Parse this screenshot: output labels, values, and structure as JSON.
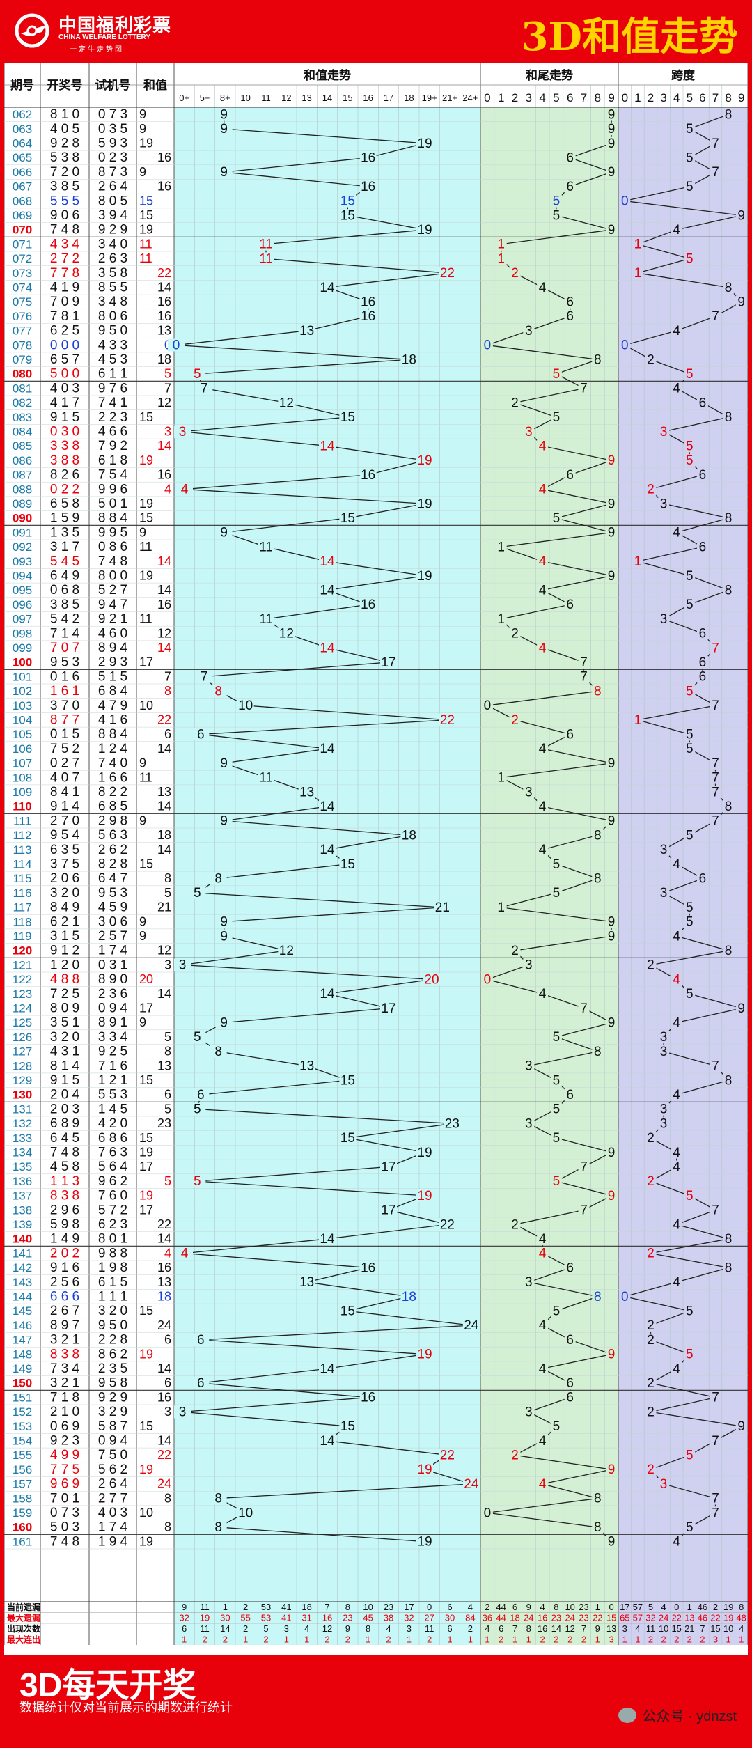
{
  "header": {
    "logo_cn": "中国福利彩票",
    "logo_en": "CHINA WELFARE LOTTERY",
    "logo_slogan": "一定牛走势图",
    "title": "3D和值走势"
  },
  "footer": {
    "title": "3D每天开奖",
    "note": "数据统计仅对当前展示的期数进行统计",
    "watermark": "公众号 · ydnzst"
  },
  "colors": {
    "red": "#e8000b",
    "sum_bg": "#c8f7f7",
    "tail_bg": "#d4f0d4",
    "span_bg": "#d0d0f0",
    "highlight_red": "#e8000b",
    "highlight_blue": "#1a3fd6",
    "title_yellow": "#ffd200"
  },
  "chart_data": {
    "type": "line",
    "column_headers": {
      "issue": "期号",
      "draw": "开奖号",
      "test": "试机号",
      "sum": "和值",
      "sum_trend": "和值走势",
      "tail_trend": "和尾走势",
      "span": "跨度"
    },
    "sum_bins": [
      "0+",
      "5+",
      "8+",
      "10",
      "11",
      "12",
      "13",
      "14",
      "15",
      "16",
      "17",
      "18",
      "19+",
      "21+",
      "24+"
    ],
    "tail_bins": [
      "0",
      "1",
      "2",
      "3",
      "4",
      "5",
      "6",
      "7",
      "8",
      "9"
    ],
    "span_bins": [
      "0",
      "1",
      "2",
      "3",
      "4",
      "5",
      "6",
      "7",
      "8",
      "9"
    ],
    "rows": [
      [
        "062",
        "810",
        "073",
        9,
        9,
        9,
        8
      ],
      [
        "063",
        "405",
        "035",
        9,
        9,
        9,
        5
      ],
      [
        "064",
        "928",
        "593",
        19,
        19,
        9,
        7
      ],
      [
        "065",
        "538",
        "023",
        16,
        16,
        6,
        5
      ],
      [
        "066",
        "720",
        "873",
        9,
        9,
        9,
        7
      ],
      [
        "067",
        "385",
        "264",
        16,
        16,
        6,
        5
      ],
      [
        "068",
        "555",
        "805",
        15,
        15,
        5,
        0
      ],
      [
        "069",
        "906",
        "394",
        15,
        15,
        5,
        9
      ],
      [
        "070",
        "748",
        "929",
        19,
        19,
        9,
        4
      ],
      [
        "071",
        "434",
        "340",
        11,
        11,
        1,
        1
      ],
      [
        "072",
        "272",
        "263",
        11,
        11,
        1,
        5
      ],
      [
        "073",
        "778",
        "358",
        22,
        22,
        2,
        1
      ],
      [
        "074",
        "419",
        "855",
        14,
        14,
        4,
        8
      ],
      [
        "075",
        "709",
        "348",
        16,
        16,
        6,
        9
      ],
      [
        "076",
        "781",
        "806",
        16,
        16,
        6,
        7
      ],
      [
        "077",
        "625",
        "950",
        13,
        13,
        3,
        4
      ],
      [
        "078",
        "000",
        "433",
        0,
        0,
        0,
        0
      ],
      [
        "079",
        "657",
        "453",
        18,
        18,
        8,
        2
      ],
      [
        "080",
        "500",
        "611",
        5,
        5,
        5,
        5
      ],
      [
        "081",
        "403",
        "976",
        7,
        7,
        7,
        4
      ],
      [
        "082",
        "417",
        "741",
        12,
        12,
        2,
        6
      ],
      [
        "083",
        "915",
        "223",
        15,
        15,
        5,
        8
      ],
      [
        "084",
        "030",
        "466",
        3,
        3,
        3,
        3
      ],
      [
        "085",
        "338",
        "792",
        14,
        14,
        4,
        5
      ],
      [
        "086",
        "388",
        "618",
        19,
        19,
        9,
        5
      ],
      [
        "087",
        "826",
        "754",
        16,
        16,
        6,
        6
      ],
      [
        "088",
        "022",
        "996",
        4,
        4,
        4,
        2
      ],
      [
        "089",
        "658",
        "501",
        19,
        19,
        9,
        3
      ],
      [
        "090",
        "159",
        "884",
        15,
        15,
        5,
        8
      ],
      [
        "091",
        "135",
        "995",
        9,
        9,
        9,
        4
      ],
      [
        "092",
        "317",
        "086",
        11,
        11,
        1,
        6
      ],
      [
        "093",
        "545",
        "748",
        14,
        14,
        4,
        1
      ],
      [
        "094",
        "649",
        "800",
        19,
        19,
        9,
        5
      ],
      [
        "095",
        "068",
        "527",
        14,
        14,
        4,
        8
      ],
      [
        "096",
        "385",
        "947",
        16,
        16,
        6,
        5
      ],
      [
        "097",
        "542",
        "921",
        11,
        11,
        1,
        3
      ],
      [
        "098",
        "714",
        "460",
        12,
        12,
        2,
        6
      ],
      [
        "099",
        "707",
        "894",
        14,
        14,
        4,
        7
      ],
      [
        "100",
        "953",
        "293",
        17,
        17,
        7,
        6
      ],
      [
        "101",
        "016",
        "515",
        7,
        7,
        7,
        6
      ],
      [
        "102",
        "161",
        "684",
        8,
        8,
        8,
        5
      ],
      [
        "103",
        "370",
        "479",
        10,
        10,
        0,
        7
      ],
      [
        "104",
        "877",
        "416",
        22,
        22,
        2,
        1
      ],
      [
        "105",
        "015",
        "884",
        6,
        6,
        6,
        5
      ],
      [
        "106",
        "752",
        "124",
        14,
        14,
        4,
        5
      ],
      [
        "107",
        "027",
        "740",
        9,
        9,
        9,
        7
      ],
      [
        "108",
        "407",
        "166",
        11,
        11,
        1,
        7
      ],
      [
        "109",
        "841",
        "822",
        13,
        13,
        3,
        7
      ],
      [
        "110",
        "914",
        "685",
        14,
        14,
        4,
        8
      ],
      [
        "111",
        "270",
        "298",
        9,
        9,
        9,
        7
      ],
      [
        "112",
        "954",
        "563",
        18,
        18,
        8,
        5
      ],
      [
        "113",
        "635",
        "262",
        14,
        14,
        4,
        3
      ],
      [
        "114",
        "375",
        "828",
        15,
        15,
        5,
        4
      ],
      [
        "115",
        "206",
        "647",
        8,
        8,
        8,
        6
      ],
      [
        "116",
        "320",
        "953",
        5,
        5,
        5,
        3
      ],
      [
        "117",
        "849",
        "459",
        21,
        21,
        1,
        5
      ],
      [
        "118",
        "621",
        "306",
        9,
        9,
        9,
        5
      ],
      [
        "119",
        "315",
        "257",
        9,
        9,
        9,
        4
      ],
      [
        "120",
        "912",
        "174",
        12,
        12,
        2,
        8
      ],
      [
        "121",
        "120",
        "031",
        3,
        3,
        3,
        2
      ],
      [
        "122",
        "488",
        "890",
        20,
        20,
        0,
        4
      ],
      [
        "123",
        "725",
        "236",
        14,
        14,
        4,
        5
      ],
      [
        "124",
        "809",
        "094",
        17,
        17,
        7,
        9
      ],
      [
        "125",
        "351",
        "891",
        9,
        9,
        9,
        4
      ],
      [
        "126",
        "320",
        "334",
        5,
        5,
        5,
        3
      ],
      [
        "127",
        "431",
        "925",
        8,
        8,
        8,
        3
      ],
      [
        "128",
        "814",
        "716",
        13,
        13,
        3,
        7
      ],
      [
        "129",
        "915",
        "121",
        15,
        15,
        5,
        8
      ],
      [
        "130",
        "204",
        "553",
        6,
        6,
        6,
        4
      ],
      [
        "131",
        "203",
        "145",
        5,
        5,
        5,
        3
      ],
      [
        "132",
        "689",
        "420",
        23,
        23,
        3,
        3
      ],
      [
        "133",
        "645",
        "686",
        15,
        15,
        5,
        2
      ],
      [
        "134",
        "748",
        "763",
        19,
        19,
        9,
        4
      ],
      [
        "135",
        "458",
        "564",
        17,
        17,
        7,
        4
      ],
      [
        "136",
        "113",
        "962",
        5,
        5,
        5,
        2
      ],
      [
        "137",
        "838",
        "760",
        19,
        19,
        9,
        5
      ],
      [
        "138",
        "296",
        "572",
        17,
        17,
        7,
        7
      ],
      [
        "139",
        "598",
        "623",
        22,
        22,
        2,
        4
      ],
      [
        "140",
        "149",
        "801",
        14,
        14,
        4,
        8
      ],
      [
        "141",
        "202",
        "988",
        4,
        4,
        4,
        2
      ],
      [
        "142",
        "916",
        "198",
        16,
        16,
        6,
        8
      ],
      [
        "143",
        "256",
        "615",
        13,
        13,
        3,
        4
      ],
      [
        "144",
        "666",
        "111",
        18,
        18,
        8,
        0
      ],
      [
        "145",
        "267",
        "320",
        15,
        15,
        5,
        5
      ],
      [
        "146",
        "897",
        "950",
        24,
        24,
        4,
        2
      ],
      [
        "147",
        "321",
        "228",
        6,
        6,
        6,
        2
      ],
      [
        "148",
        "838",
        "862",
        19,
        19,
        9,
        5
      ],
      [
        "149",
        "734",
        "235",
        14,
        14,
        4,
        4
      ],
      [
        "150",
        "321",
        "958",
        6,
        6,
        6,
        2
      ],
      [
        "151",
        "718",
        "929",
        16,
        16,
        6,
        7
      ],
      [
        "152",
        "210",
        "329",
        3,
        3,
        3,
        2
      ],
      [
        "153",
        "069",
        "587",
        15,
        15,
        5,
        9
      ],
      [
        "154",
        "923",
        "094",
        14,
        14,
        4,
        7
      ],
      [
        "155",
        "499",
        "750",
        22,
        22,
        2,
        5
      ],
      [
        "156",
        "775",
        "562",
        19,
        19,
        9,
        2
      ],
      [
        "157",
        "969",
        "264",
        24,
        24,
        4,
        3
      ],
      [
        "158",
        "701",
        "277",
        8,
        8,
        8,
        7
      ],
      [
        "159",
        "073",
        "403",
        10,
        10,
        0,
        7
      ],
      [
        "160",
        "503",
        "174",
        8,
        8,
        8,
        5
      ],
      [
        "161",
        "748",
        "194",
        19,
        19,
        9,
        4
      ]
    ],
    "stats": [
      {
        "label": "当前遗漏",
        "sum": [
          "9",
          "11",
          "1",
          "2",
          "53",
          "41",
          "18",
          "7",
          "8",
          "10",
          "23",
          "17",
          "0",
          "6",
          "4"
        ],
        "tail": [
          "2",
          "44",
          "6",
          "9",
          "4",
          "8",
          "10",
          "23",
          "1",
          "0"
        ],
        "span": [
          "17",
          "57",
          "5",
          "4",
          "0",
          "1",
          "46",
          "2",
          "19",
          "8"
        ]
      },
      {
        "label": "最大遗漏",
        "sum": [
          "32",
          "19",
          "30",
          "55",
          "53",
          "41",
          "31",
          "16",
          "23",
          "45",
          "38",
          "32",
          "27",
          "30",
          "84"
        ],
        "tail": [
          "36",
          "44",
          "18",
          "24",
          "16",
          "23",
          "24",
          "23",
          "22",
          "15"
        ],
        "span": [
          "65",
          "57",
          "32",
          "24",
          "22",
          "13",
          "46",
          "22",
          "19",
          "48"
        ]
      },
      {
        "label": "出现次数",
        "sum": [
          "6",
          "11",
          "14",
          "2",
          "5",
          "3",
          "4",
          "12",
          "9",
          "8",
          "4",
          "3",
          "11",
          "6",
          "2"
        ],
        "tail": [
          "4",
          "6",
          "7",
          "8",
          "16",
          "14",
          "12",
          "7",
          "9",
          "13"
        ],
        "span": [
          "3",
          "4",
          "11",
          "10",
          "15",
          "21",
          "7",
          "15",
          "10",
          "4"
        ]
      },
      {
        "label": "最大连出",
        "sum": [
          "1",
          "2",
          "2",
          "1",
          "2",
          "1",
          "1",
          "2",
          "2",
          "1",
          "2",
          "1",
          "2",
          "1",
          "1"
        ],
        "tail": [
          "1",
          "2",
          "1",
          "1",
          "2",
          "2",
          "2",
          "2",
          "1",
          "3"
        ],
        "span": [
          "1",
          "1",
          "2",
          "2",
          "2",
          "2",
          "2",
          "3",
          "1",
          "1"
        ]
      }
    ]
  }
}
